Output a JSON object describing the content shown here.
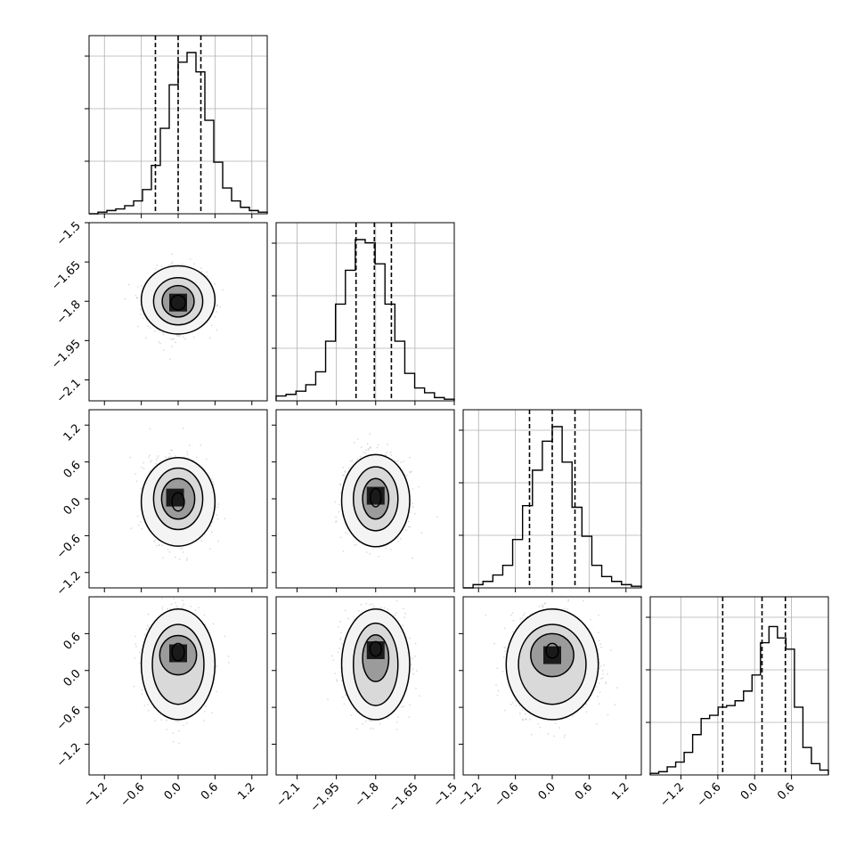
{
  "chart_data": {
    "type": "corner",
    "grid": true,
    "colors": {
      "line": "#000000",
      "grid": "#b0b0b0",
      "points": "#9a9a9a"
    },
    "parameters": [
      {
        "ticks": [
          -1.2,
          -0.6,
          0.0,
          0.6,
          1.2
        ],
        "range": [
          -1.45,
          1.45
        ],
        "quantiles": [
          -0.37,
          0.0,
          0.37
        ],
        "hist": [
          0.0,
          0.01,
          0.02,
          0.03,
          0.05,
          0.08,
          0.15,
          0.3,
          0.53,
          0.8,
          0.94,
          1.0,
          0.88,
          0.58,
          0.32,
          0.16,
          0.08,
          0.04,
          0.02,
          0.01
        ]
      },
      {
        "ticks": [
          -2.1,
          -1.95,
          -1.8,
          -1.65,
          -1.5
        ],
        "range": [
          -2.18,
          -1.5
        ],
        "quantiles": [
          -1.875,
          -1.805,
          -1.74
        ],
        "hist": [
          0.03,
          0.04,
          0.06,
          0.1,
          0.18,
          0.37,
          0.6,
          0.81,
          1.0,
          0.98,
          0.85,
          0.6,
          0.37,
          0.17,
          0.08,
          0.05,
          0.02,
          0.01
        ]
      },
      {
        "ticks": [
          -1.2,
          -0.6,
          0.0,
          0.6,
          1.2
        ],
        "range": [
          -1.45,
          1.45
        ],
        "quantiles": [
          -0.37,
          0.0,
          0.37
        ],
        "hist": [
          0.0,
          0.02,
          0.04,
          0.08,
          0.14,
          0.3,
          0.51,
          0.73,
          0.91,
          1.0,
          0.78,
          0.5,
          0.32,
          0.14,
          0.07,
          0.04,
          0.02,
          0.01
        ]
      },
      {
        "ticks": [
          -1.2,
          -0.6,
          0.0,
          0.6
        ],
        "range": [
          -1.7,
          1.2
        ],
        "quantiles": [
          -0.52,
          0.12,
          0.5
        ],
        "hist": [
          0.01,
          0.02,
          0.05,
          0.08,
          0.14,
          0.25,
          0.35,
          0.37,
          0.42,
          0.43,
          0.46,
          0.52,
          0.62,
          0.82,
          0.92,
          0.85,
          0.78,
          0.42,
          0.17,
          0.07,
          0.03
        ]
      }
    ],
    "pairs": [
      {
        "x": 0,
        "y": 1,
        "xc": 0.0,
        "yc": -1.8,
        "sx": 0.23,
        "sy": 0.055,
        "contours": [
          {
            "rx": 0.12,
            "ry": 0.028,
            "dx": 0.0,
            "dy": -0.005
          },
          {
            "rx": 0.26,
            "ry": 0.06,
            "dx": 0.0,
            "dy": 0.0
          },
          {
            "rx": 0.4,
            "ry": 0.09,
            "dx": 0.0,
            "dy": 0.0
          },
          {
            "rx": 0.6,
            "ry": 0.13,
            "dx": 0.0,
            "dy": 0.005
          }
        ],
        "hot": [
          {
            "x": 0.0,
            "y": -1.805
          }
        ]
      },
      {
        "x": 0,
        "y": 2,
        "xc": 0.0,
        "yc": 0.0,
        "sx": 0.23,
        "sy": 0.32,
        "contours": [
          {
            "rx": 0.1,
            "ry": 0.15,
            "dx": 0.0,
            "dy": -0.05
          },
          {
            "rx": 0.27,
            "ry": 0.33,
            "dx": 0.0,
            "dy": 0.0
          },
          {
            "rx": 0.4,
            "ry": 0.5,
            "dx": 0.0,
            "dy": 0.0
          },
          {
            "rx": 0.6,
            "ry": 0.72,
            "dx": 0.0,
            "dy": -0.05
          }
        ],
        "hot": [
          {
            "x": -0.05,
            "y": 0.02
          }
        ]
      },
      {
        "x": 1,
        "y": 2,
        "xc": -1.8,
        "yc": 0.0,
        "sx": 0.055,
        "sy": 0.32,
        "contours": [
          {
            "rx": 0.02,
            "ry": 0.15,
            "dx": 0.0,
            "dy": 0.02
          },
          {
            "rx": 0.05,
            "ry": 0.33,
            "dx": 0.0,
            "dy": 0.0
          },
          {
            "rx": 0.085,
            "ry": 0.52,
            "dx": 0.0,
            "dy": 0.0
          },
          {
            "rx": 0.13,
            "ry": 0.75,
            "dx": 0.0,
            "dy": -0.03
          }
        ],
        "hot": [
          {
            "x": -1.8,
            "y": 0.05
          }
        ]
      },
      {
        "x": 0,
        "y": 3,
        "xc": 0.0,
        "yc": 0.1,
        "sx": 0.23,
        "sy": 0.38,
        "contours": [
          {
            "rx": 0.1,
            "ry": 0.14,
            "dx": 0.0,
            "dy": 0.2
          },
          {
            "rx": 0.3,
            "ry": 0.32,
            "dx": 0.0,
            "dy": 0.15
          },
          {
            "rx": 0.42,
            "ry": 0.65,
            "dx": 0.0,
            "dy": 0.0
          },
          {
            "rx": 0.6,
            "ry": 0.9,
            "dx": 0.0,
            "dy": 0.0
          }
        ],
        "hot": [
          {
            "x": 0.0,
            "y": 0.28
          }
        ]
      },
      {
        "x": 1,
        "y": 3,
        "xc": -1.8,
        "yc": 0.1,
        "sx": 0.055,
        "sy": 0.38,
        "contours": [
          {
            "rx": 0.022,
            "ry": 0.12,
            "dx": 0.0,
            "dy": 0.25
          },
          {
            "rx": 0.05,
            "ry": 0.38,
            "dx": 0.0,
            "dy": 0.1
          },
          {
            "rx": 0.085,
            "ry": 0.67,
            "dx": 0.0,
            "dy": 0.0
          },
          {
            "rx": 0.13,
            "ry": 0.9,
            "dx": 0.0,
            "dy": 0.0
          }
        ],
        "hot": [
          {
            "x": -1.8,
            "y": 0.33
          }
        ]
      },
      {
        "x": 2,
        "y": 3,
        "xc": 0.0,
        "yc": 0.1,
        "sx": 0.32,
        "sy": 0.38,
        "contours": [
          {
            "rx": 0.1,
            "ry": 0.12,
            "dx": 0.0,
            "dy": 0.22
          },
          {
            "rx": 0.35,
            "ry": 0.35,
            "dx": 0.0,
            "dy": 0.15
          },
          {
            "rx": 0.55,
            "ry": 0.65,
            "dx": 0.0,
            "dy": 0.0
          },
          {
            "rx": 0.75,
            "ry": 0.9,
            "dx": 0.0,
            "dy": 0.0
          }
        ],
        "hot": [
          {
            "x": 0.0,
            "y": 0.25
          }
        ]
      }
    ]
  }
}
